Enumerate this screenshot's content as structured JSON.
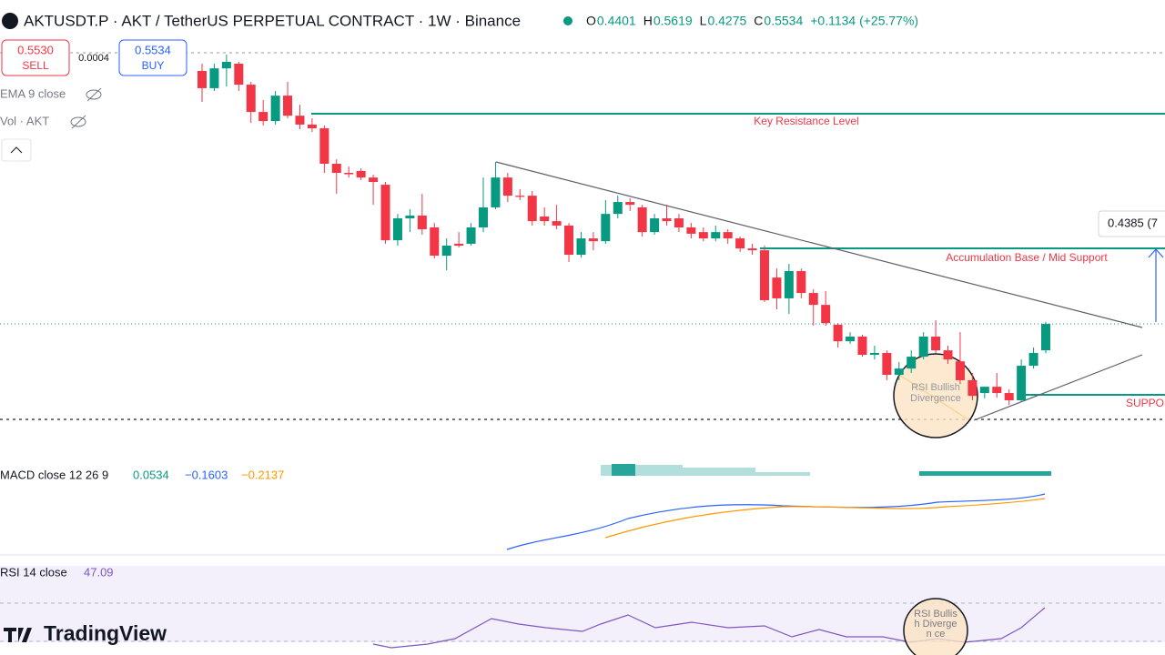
{
  "header": {
    "title": "AKTUSDT.P · AKT / TetherUS PERPETUAL CONTRACT · 1W · Binance",
    "ohlc": [
      {
        "label": "O",
        "value": "0.4401"
      },
      {
        "label": "H",
        "value": "0.5619"
      },
      {
        "label": "L",
        "value": "0.4275"
      },
      {
        "label": "C",
        "value": "0.5534"
      }
    ],
    "change": "+0.1134 (+25.77%)"
  },
  "trade": {
    "sell_price": "0.5530",
    "sell": "SELL",
    "spread": "0.0004",
    "buy_price": "0.5534",
    "buy": "BUY"
  },
  "indicators": [
    "EMA 9 close",
    "Vol · AKT"
  ],
  "annotations": {
    "resistance": "Key Resistance Level",
    "accumulation": "Accumulation Base / Mid Support",
    "support": "SUPPOR",
    "measure": "0.4385 (7",
    "divergence_price": "RSI Bullish Divergence",
    "divergence_rsi": "RSI Bullish Divergen ce"
  },
  "macd": {
    "label": "MACD close 12 26 9",
    "values": [
      "0.0534",
      "−0.1603",
      "−0.2137"
    ]
  },
  "rsi": {
    "label": "RSI 14 close",
    "value": "47.09"
  },
  "brand": "TradingView",
  "chart_data": {
    "type": "candlestick",
    "ylim": [
      0.031,
      1.786
    ],
    "up_color": "#089981",
    "down_color": "#f23645",
    "candles": [
      [
        1.638,
        1.669,
        1.505,
        1.564
      ],
      [
        1.564,
        1.669,
        1.552,
        1.649
      ],
      [
        1.649,
        1.708,
        1.571,
        1.677
      ],
      [
        1.669,
        1.677,
        1.552,
        1.579
      ],
      [
        1.579,
        1.591,
        1.415,
        1.462
      ],
      [
        1.462,
        1.513,
        1.404,
        1.423
      ],
      [
        1.423,
        1.552,
        1.408,
        1.532
      ],
      [
        1.532,
        1.591,
        1.435,
        1.446
      ],
      [
        1.446,
        1.493,
        1.388,
        1.408
      ],
      [
        1.408,
        1.435,
        1.376,
        1.392
      ],
      [
        1.392,
        1.404,
        1.201,
        1.24
      ],
      [
        1.24,
        1.259,
        1.111,
        1.201
      ],
      [
        1.201,
        1.228,
        1.181,
        1.195
      ],
      [
        1.209,
        1.22,
        1.17,
        1.181
      ],
      [
        1.181,
        1.193,
        1.064,
        1.162
      ],
      [
        1.15,
        1.162,
        0.897,
        0.912
      ],
      [
        0.912,
        1.025,
        0.889,
        1.006
      ],
      [
        1.006,
        1.045,
        0.947,
        1.018
      ],
      [
        1.018,
        1.111,
        0.936,
        0.959
      ],
      [
        0.967,
        0.986,
        0.834,
        0.846
      ],
      [
        0.846,
        0.92,
        0.783,
        0.889
      ],
      [
        0.897,
        0.947,
        0.881,
        0.889
      ],
      [
        0.897,
        0.986,
        0.889,
        0.967
      ],
      [
        0.967,
        1.181,
        0.947,
        1.053
      ],
      [
        1.053,
        1.248,
        1.045,
        1.181
      ],
      [
        1.181,
        1.201,
        1.076,
        1.103
      ],
      [
        1.103,
        1.131,
        1.084,
        1.098
      ],
      [
        1.103,
        1.123,
        0.975,
        0.994
      ],
      [
        1.014,
        1.053,
        0.975,
        0.994
      ],
      [
        0.994,
        1.064,
        0.959,
        0.975
      ],
      [
        0.975,
        0.986,
        0.819,
        0.85
      ],
      [
        0.85,
        0.947,
        0.838,
        0.92
      ],
      [
        0.92,
        0.947,
        0.869,
        0.908
      ],
      [
        0.908,
        1.084,
        0.897,
        1.025
      ],
      [
        1.025,
        1.103,
        1.006,
        1.076
      ],
      [
        1.076,
        1.092,
        1.037,
        1.064
      ],
      [
        1.053,
        1.064,
        0.928,
        0.947
      ],
      [
        0.947,
        1.025,
        0.936,
        1.006
      ],
      [
        1.006,
        1.064,
        0.975,
        0.994
      ],
      [
        1.006,
        1.025,
        0.947,
        0.967
      ],
      [
        0.967,
        0.986,
        0.92,
        0.94
      ],
      [
        0.947,
        0.967,
        0.908,
        0.92
      ],
      [
        0.92,
        0.975,
        0.908,
        0.947
      ],
      [
        0.947,
        0.959,
        0.897,
        0.92
      ],
      [
        0.92,
        0.928,
        0.862,
        0.877
      ],
      [
        0.877,
        0.897,
        0.85,
        0.869
      ],
      [
        0.869,
        0.889,
        0.647,
        0.655
      ],
      [
        0.752,
        0.791,
        0.616,
        0.663
      ],
      [
        0.663,
        0.811,
        0.596,
        0.78
      ],
      [
        0.78,
        0.791,
        0.663,
        0.686
      ],
      [
        0.686,
        0.702,
        0.546,
        0.635
      ],
      [
        0.635,
        0.694,
        0.546,
        0.557
      ],
      [
        0.55,
        0.557,
        0.452,
        0.479
      ],
      [
        0.479,
        0.518,
        0.468,
        0.499
      ],
      [
        0.499,
        0.507,
        0.413,
        0.421
      ],
      [
        0.421,
        0.46,
        0.401,
        0.429
      ],
      [
        0.429,
        0.44,
        0.312,
        0.335
      ],
      [
        0.335,
        0.39,
        0.312,
        0.362
      ],
      [
        0.362,
        0.44,
        0.343,
        0.413
      ],
      [
        0.413,
        0.518,
        0.401,
        0.499
      ],
      [
        0.499,
        0.569,
        0.429,
        0.44
      ],
      [
        0.44,
        0.46,
        0.382,
        0.401
      ],
      [
        0.393,
        0.518,
        0.296,
        0.312
      ],
      [
        0.312,
        0.343,
        0.226,
        0.245
      ],
      [
        0.257,
        0.284,
        0.234,
        0.284
      ],
      [
        0.284,
        0.343,
        0.237,
        0.257
      ],
      [
        0.257,
        0.273,
        0.206,
        0.226
      ],
      [
        0.226,
        0.401,
        0.218,
        0.374
      ],
      [
        0.374,
        0.452,
        0.362,
        0.429
      ],
      [
        0.4401,
        0.5619,
        0.4275,
        0.5534
      ]
    ]
  }
}
